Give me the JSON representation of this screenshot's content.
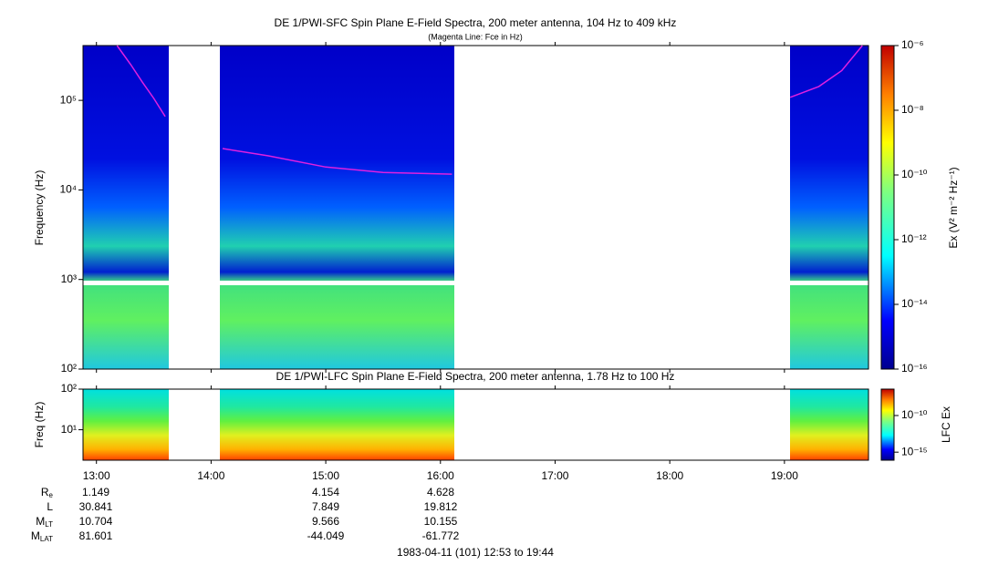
{
  "chart_data": [
    {
      "type": "spectrogram",
      "title": "DE 1/PWI-SFC  Spin Plane E-Field Spectra, 200 meter antenna, 104 Hz to 409 kHz",
      "subtitle": "(Magenta Line: Fce in Hz)",
      "y_label": "Frequency (Hz)",
      "log_y": true,
      "xlim": [
        12.883,
        19.733
      ],
      "ylim": [
        100,
        409000
      ],
      "yticks": [
        {
          "value": 100,
          "label": "10²"
        },
        {
          "value": 1000,
          "label": "10³"
        },
        {
          "value": 10000,
          "label": "10⁴"
        },
        {
          "value": 100000,
          "label": "10⁵"
        }
      ],
      "series": [
        {
          "name": "Fce",
          "color": "#e020e0",
          "x": [
            13.18,
            13.3,
            13.4,
            13.5,
            13.6,
            null,
            14.1,
            14.5,
            15,
            15.5,
            16.1,
            null,
            19.05,
            19.3,
            19.5,
            19.68
          ],
          "values": [
            409000,
            250000,
            160000,
            105000,
            66000,
            null,
            29000,
            24000,
            18000,
            15700,
            15000,
            null,
            108000,
            143000,
            215000,
            409000
          ]
        }
      ],
      "colorbar": {
        "label": "Ex (V² m⁻² Hz⁻¹)",
        "log": true,
        "clim": [
          1e-16,
          1e-06
        ],
        "ticks": [
          {
            "value": 1e-06,
            "label": "10⁻⁶"
          },
          {
            "value": 1e-08,
            "label": "10⁻⁸"
          },
          {
            "value": 1e-10,
            "label": "10⁻¹⁰"
          },
          {
            "value": 1e-12,
            "label": "10⁻¹²"
          },
          {
            "value": 1e-14,
            "label": "10⁻¹⁴"
          },
          {
            "value": 1e-16,
            "label": "10⁻¹⁶"
          }
        ]
      }
    },
    {
      "type": "spectrogram",
      "title": "DE 1/PWI-LFC  Spin Plane E-Field Spectra, 200 meter antenna, 1.78 Hz to 100 Hz",
      "y_label": "Freq (Hz)",
      "log_y": true,
      "xlim": [
        12.883,
        19.733
      ],
      "xticks": [
        {
          "value": 13,
          "label": "13:00"
        },
        {
          "value": 14,
          "label": "14:00"
        },
        {
          "value": 15,
          "label": "15:00"
        },
        {
          "value": 16,
          "label": "16:00"
        },
        {
          "value": 17,
          "label": "17:00"
        },
        {
          "value": 18,
          "label": "18:00"
        },
        {
          "value": 19,
          "label": "19:00"
        }
      ],
      "ylim": [
        1.78,
        100
      ],
      "yticks": [
        {
          "value": 10,
          "label": "10¹"
        },
        {
          "value": 100,
          "label": "10²"
        }
      ],
      "colorbar": {
        "label": "LFC Ex",
        "log": true,
        "clim": [
          8e-17,
          4e-07
        ],
        "ticks": [
          {
            "value": 1e-10,
            "label": "10⁻¹⁰"
          },
          {
            "value": 1e-15,
            "label": "10⁻¹⁵"
          }
        ]
      }
    }
  ],
  "ephemeris": {
    "rows": [
      {
        "label": "R",
        "subscript": "e",
        "values": [
          1.149,
          4.154,
          4.628
        ]
      },
      {
        "label": "L",
        "subscript": "",
        "values": [
          30.841,
          7.849,
          19.812
        ]
      },
      {
        "label": "M",
        "subscript": "LT",
        "values": [
          10.704,
          9.566,
          10.155
        ]
      },
      {
        "label": "M",
        "subscript": "LAT",
        "values": [
          81.601,
          -44.049,
          -61.772
        ]
      }
    ]
  },
  "footer": "1983-04-11 (101) 12:53 to 19:44"
}
